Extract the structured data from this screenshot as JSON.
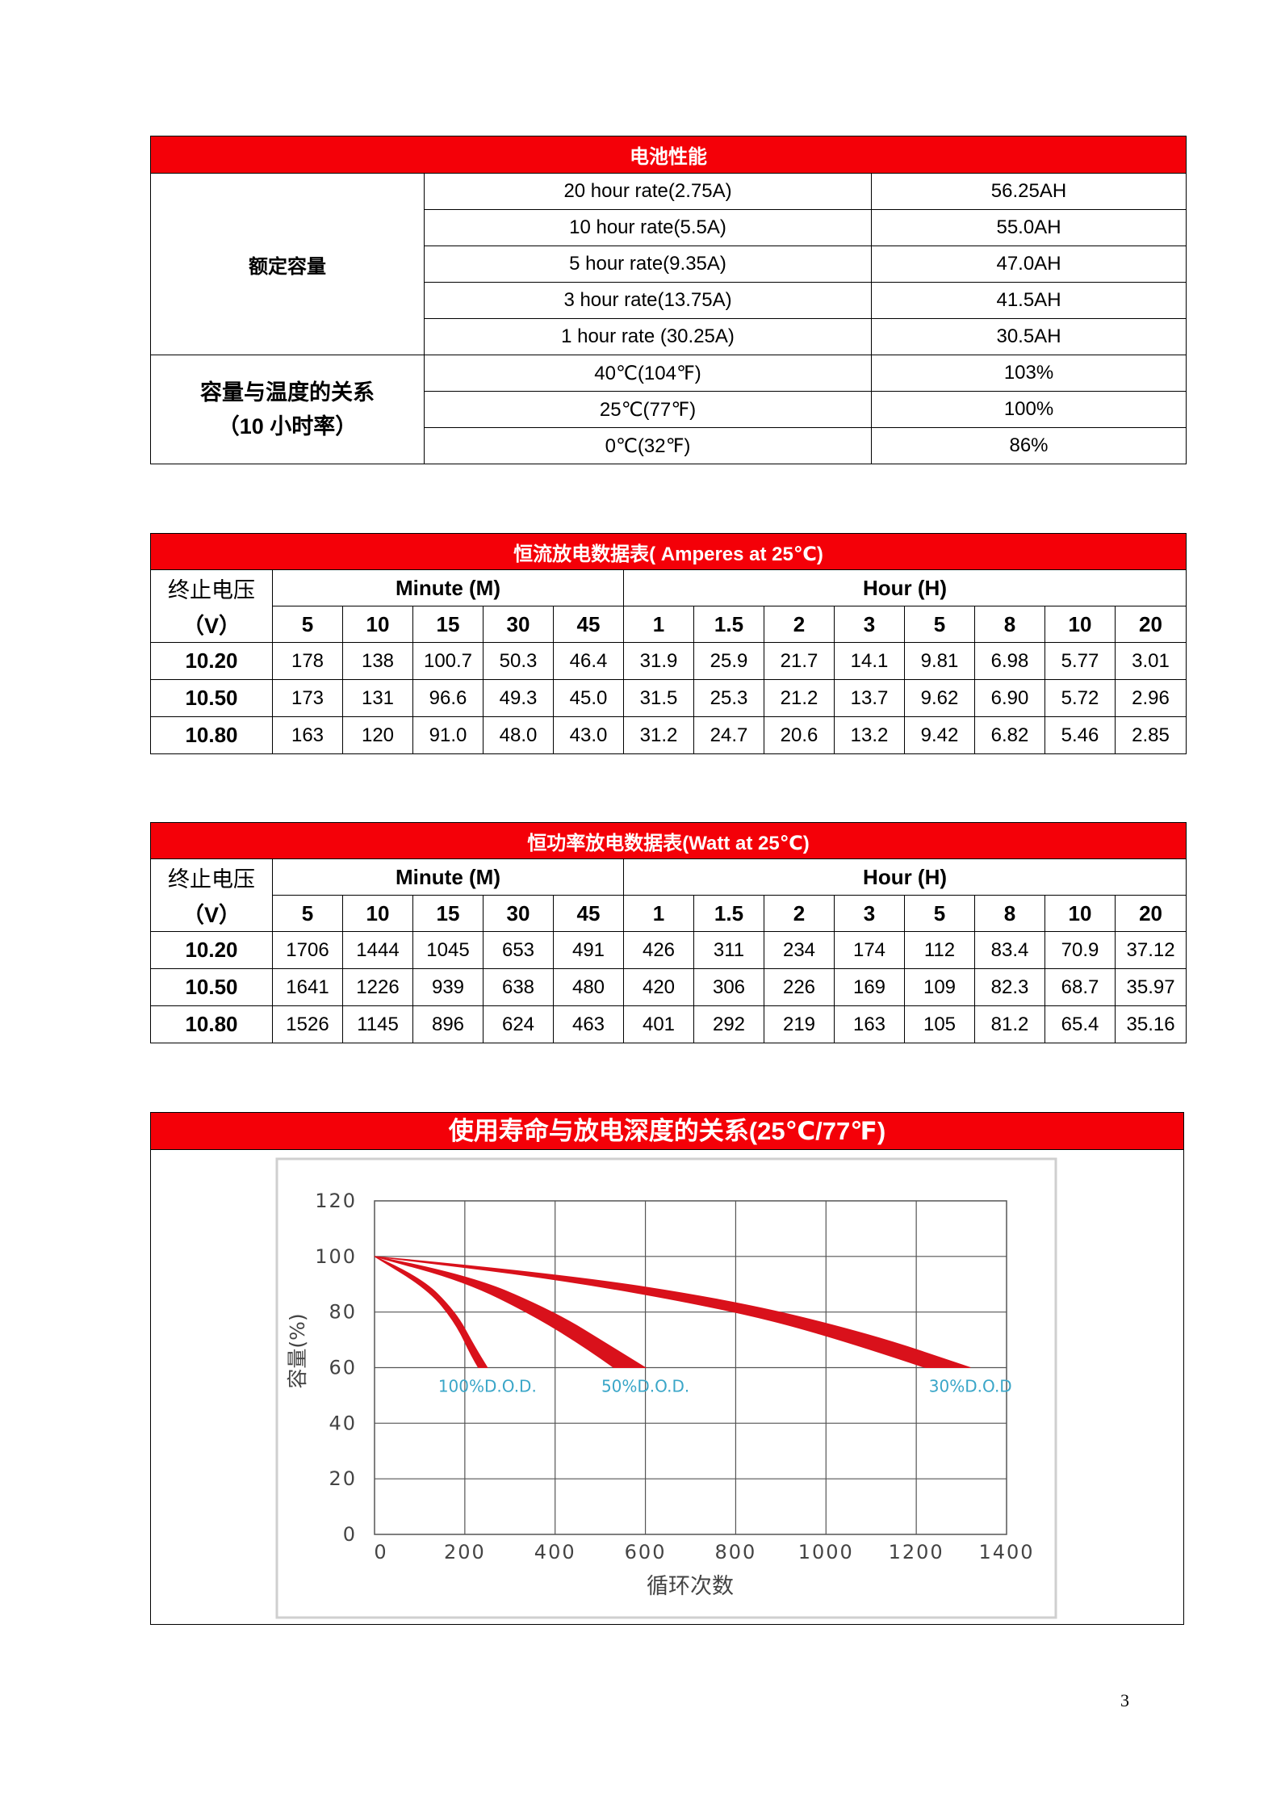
{
  "perf": {
    "title": "电池性能",
    "rated_label": "额定容量",
    "rates": [
      {
        "rate": "20 hour rate(2.75A)",
        "capacity": "56.25AH"
      },
      {
        "rate": "10 hour rate(5.5A)",
        "capacity": "55.0AH"
      },
      {
        "rate": "5 hour rate(9.35A)",
        "capacity": "47.0AH"
      },
      {
        "rate": "3 hour rate(13.75A)",
        "capacity": "41.5AH"
      },
      {
        "rate": "1 hour rate (30.25A)",
        "capacity": "30.5AH"
      }
    ],
    "temp_label_1": "容量与温度的关系",
    "temp_label_2": "（10 小时率）",
    "temps": [
      {
        "temp": "40℃(104℉)",
        "capacity": "103%"
      },
      {
        "temp": "25℃(77℉)",
        "capacity": "100%"
      },
      {
        "temp": "0℃(32℉)",
        "capacity": "86%"
      }
    ]
  },
  "current": {
    "title": "恒流放电数据表( Amperes at 25℃)",
    "vlabel_1": "终止电压",
    "vlabel_2": "（V）",
    "minute_label": "Minute (M)",
    "hour_label": "Hour (H)",
    "cols": [
      "5",
      "10",
      "15",
      "30",
      "45",
      "1",
      "1.5",
      "2",
      "3",
      "5",
      "8",
      "10",
      "20"
    ],
    "rows": [
      {
        "v": "10.20",
        "vals": [
          "178",
          "138",
          "100.7",
          "50.3",
          "46.4",
          "31.9",
          "25.9",
          "21.7",
          "14.1",
          "9.81",
          "6.98",
          "5.77",
          "3.01"
        ]
      },
      {
        "v": "10.50",
        "vals": [
          "173",
          "131",
          "96.6",
          "49.3",
          "45.0",
          "31.5",
          "25.3",
          "21.2",
          "13.7",
          "9.62",
          "6.90",
          "5.72",
          "2.96"
        ]
      },
      {
        "v": "10.80",
        "vals": [
          "163",
          "120",
          "91.0",
          "48.0",
          "43.0",
          "31.2",
          "24.7",
          "20.6",
          "13.2",
          "9.42",
          "6.82",
          "5.46",
          "2.85"
        ]
      }
    ]
  },
  "power": {
    "title": "恒功率放电数据表(Watt at 25℃)",
    "vlabel_1": "终止电压",
    "vlabel_2": "（V）",
    "minute_label": "Minute (M)",
    "hour_label": "Hour (H)",
    "cols": [
      "5",
      "10",
      "15",
      "30",
      "45",
      "1",
      "1.5",
      "2",
      "3",
      "5",
      "8",
      "10",
      "20"
    ],
    "rows": [
      {
        "v": "10.20",
        "vals": [
          "1706",
          "1444",
          "1045",
          "653",
          "491",
          "426",
          "311",
          "234",
          "174",
          "112",
          "83.4",
          "70.9",
          "37.12"
        ]
      },
      {
        "v": "10.50",
        "vals": [
          "1641",
          "1226",
          "939",
          "638",
          "480",
          "420",
          "306",
          "226",
          "169",
          "109",
          "82.3",
          "68.7",
          "35.97"
        ]
      },
      {
        "v": "10.80",
        "vals": [
          "1526",
          "1145",
          "896",
          "624",
          "463",
          "401",
          "292",
          "219",
          "163",
          "105",
          "81.2",
          "65.4",
          "35.16"
        ]
      }
    ]
  },
  "chart_title": "使用寿命与放电深度的关系(25℃/77℉)",
  "chart_data": {
    "type": "area",
    "xlabel": "循环次数",
    "ylabel": "容量(%)",
    "xlim": [
      0,
      1400
    ],
    "ylim": [
      0,
      120
    ],
    "x_ticks": [
      "0",
      "200",
      "400",
      "600",
      "800",
      "1000",
      "1200",
      "1400"
    ],
    "y_ticks": [
      "0",
      "20",
      "40",
      "60",
      "80",
      "100",
      "120"
    ],
    "grid": true,
    "fill_color": "#d9111b",
    "label_color": "#3aa6c8",
    "series": [
      {
        "name": "100%D.O.D.",
        "upper": [
          [
            0,
            100
          ],
          [
            100,
            93
          ],
          [
            180,
            80
          ],
          [
            220,
            68
          ],
          [
            250,
            60
          ]
        ],
        "lower": [
          [
            0,
            100
          ],
          [
            120,
            88
          ],
          [
            180,
            76
          ],
          [
            215,
            64
          ],
          [
            230,
            60
          ]
        ]
      },
      {
        "name": "50%D.O.D.",
        "upper": [
          [
            0,
            100
          ],
          [
            200,
            94
          ],
          [
            400,
            80
          ],
          [
            530,
            67
          ],
          [
            600,
            60
          ]
        ],
        "lower": [
          [
            0,
            100
          ],
          [
            200,
            91
          ],
          [
            350,
            79
          ],
          [
            470,
            67
          ],
          [
            530,
            60
          ]
        ]
      },
      {
        "name": "30%D.O.D",
        "upper": [
          [
            0,
            100
          ],
          [
            400,
            94
          ],
          [
            800,
            84
          ],
          [
            1100,
            72
          ],
          [
            1320,
            60
          ]
        ],
        "lower": [
          [
            0,
            100
          ],
          [
            400,
            92
          ],
          [
            750,
            82
          ],
          [
            1000,
            72
          ],
          [
            1220,
            60
          ]
        ]
      }
    ]
  },
  "page_number": "3"
}
